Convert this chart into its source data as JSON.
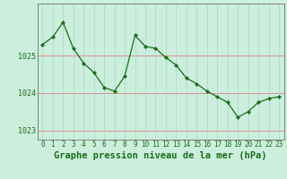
{
  "x": [
    0,
    1,
    2,
    3,
    4,
    5,
    6,
    7,
    8,
    9,
    10,
    11,
    12,
    13,
    14,
    15,
    16,
    17,
    18,
    19,
    20,
    21,
    22,
    23
  ],
  "y": [
    1025.3,
    1025.5,
    1025.9,
    1025.2,
    1024.8,
    1024.55,
    1024.15,
    1024.05,
    1024.45,
    1025.55,
    1025.25,
    1025.2,
    1024.95,
    1024.75,
    1024.4,
    1024.25,
    1024.05,
    1023.9,
    1023.75,
    1023.35,
    1023.5,
    1023.75,
    1023.85,
    1023.9
  ],
  "line_color": "#1a6e1a",
  "marker": "D",
  "marker_size": 2.2,
  "bg_color": "#cceedd",
  "plot_bg_color": "#cceedd",
  "hgrid_color": "#e08080",
  "vgrid_color": "#aaddcc",
  "xlabel": "Graphe pression niveau de la mer (hPa)",
  "ylim": [
    1022.75,
    1026.4
  ],
  "yticks": [
    1023,
    1024,
    1025
  ],
  "xticks": [
    0,
    1,
    2,
    3,
    4,
    5,
    6,
    7,
    8,
    9,
    10,
    11,
    12,
    13,
    14,
    15,
    16,
    17,
    18,
    19,
    20,
    21,
    22,
    23
  ],
  "tick_color": "#1a6e1a",
  "label_color": "#1a6e1a",
  "xlabel_fontsize": 7.5,
  "tick_fontsize": 6.0,
  "spine_color": "#808080",
  "outer_bg": "#cceedd"
}
